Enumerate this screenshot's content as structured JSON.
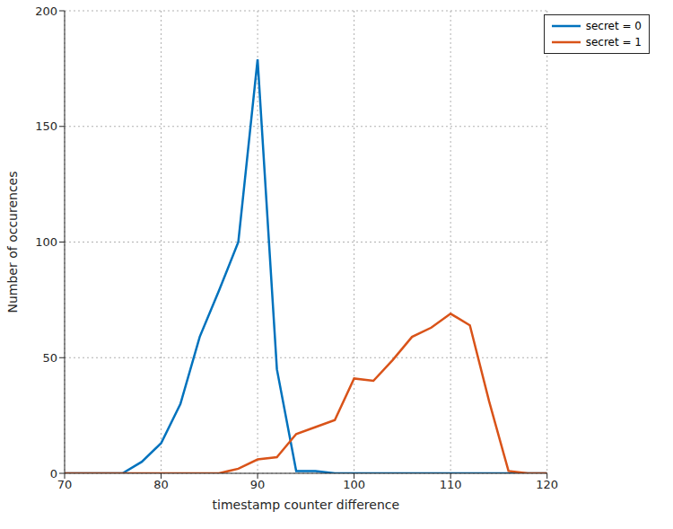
{
  "chart_data": {
    "type": "line",
    "xlabel": "timestamp counter difference",
    "ylabel": "Number of occurences",
    "x": [
      70,
      72,
      74,
      76,
      78,
      80,
      82,
      84,
      86,
      88,
      90,
      92,
      94,
      96,
      98,
      100,
      102,
      104,
      106,
      108,
      110,
      112,
      114,
      116,
      118,
      120
    ],
    "series": [
      {
        "name": "secret = 0",
        "color": "#0072bd",
        "values": [
          0,
          0,
          0,
          0,
          5,
          13,
          30,
          59,
          79,
          100,
          179,
          45,
          1,
          1,
          0,
          0,
          0,
          0,
          0,
          0,
          0,
          0,
          0,
          0,
          0,
          0
        ]
      },
      {
        "name": "secret = 1",
        "color": "#d95319",
        "values": [
          0,
          0,
          0,
          0,
          0,
          0,
          0,
          0,
          0,
          2,
          6,
          7,
          17,
          20,
          23,
          41,
          40,
          49,
          59,
          63,
          69,
          64,
          31,
          1,
          0,
          0
        ]
      }
    ],
    "xlim": [
      70,
      120
    ],
    "ylim": [
      0,
      200
    ],
    "xticks": [
      70,
      80,
      90,
      100,
      110,
      120
    ],
    "yticks": [
      0,
      50,
      100,
      150,
      200
    ],
    "grid": true,
    "legend": "upper right"
  }
}
